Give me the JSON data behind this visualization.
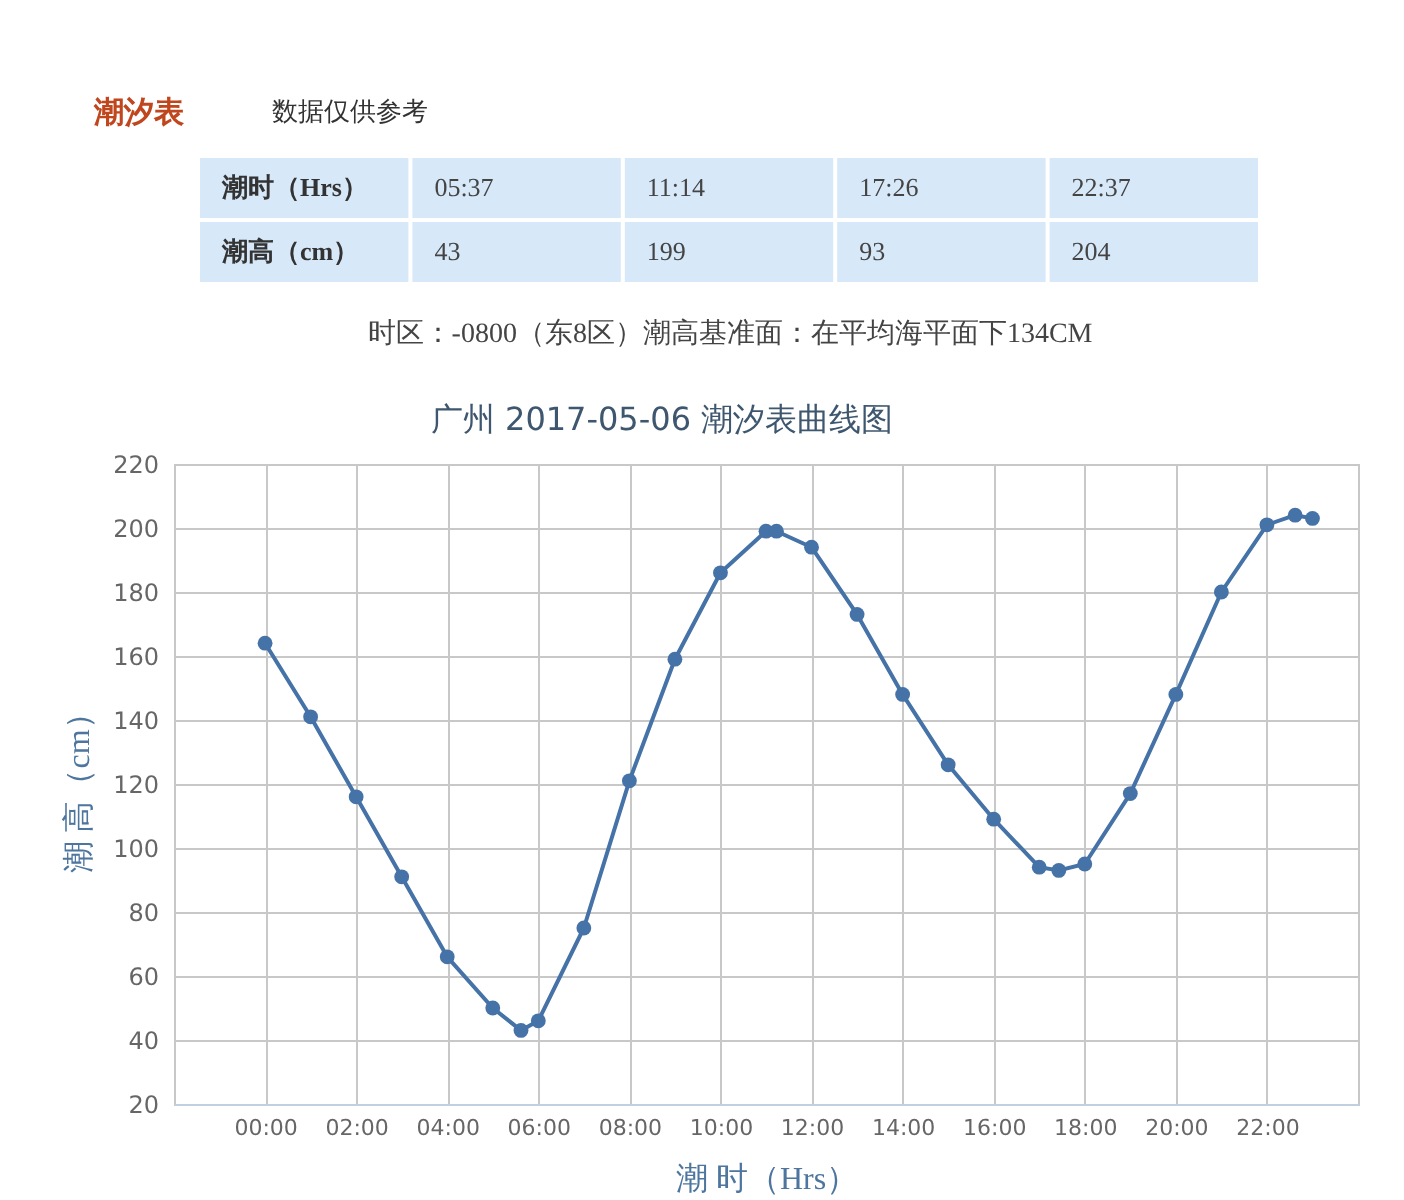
{
  "chart_data": [
    {
      "type": "other",
      "title": "潮汐表",
      "subtitle": "数据仅供参考",
      "annotations": [
        "潮时（Hrs）",
        "05:37",
        "11:14",
        "17:26",
        "22:37",
        "潮高（cm）",
        "43",
        "199",
        "93",
        "204",
        "时区：-0800（东8区）潮高基准面：在平均海平面下134CM"
      ]
    },
    {
      "type": "line",
      "title": "广州 2017-05-06 潮汐表曲线图",
      "xlabel": "潮 时（Hrs）",
      "ylabel": "潮 高（cm）",
      "x": [
        0,
        1,
        2,
        3,
        4,
        5,
        5.62,
        6,
        7,
        8,
        9,
        10,
        11,
        11.23,
        12,
        13,
        14,
        15,
        16,
        17,
        17.43,
        18,
        19,
        20,
        21,
        22,
        22.62,
        23
      ],
      "series": [
        {
          "color": "#4572a7",
          "values": [
            164,
            141,
            116,
            91,
            66,
            50,
            43,
            46,
            75,
            121,
            159,
            186,
            199,
            199,
            194,
            173,
            148,
            126,
            109,
            94,
            93,
            95,
            117,
            148,
            180,
            201,
            204,
            203
          ]
        }
      ],
      "xlim": [
        -2,
        24
      ],
      "xticks": [
        {
          "value": 0,
          "label": "00:00"
        },
        {
          "value": 2,
          "label": "02:00"
        },
        {
          "value": 4,
          "label": "04:00"
        },
        {
          "value": 6,
          "label": "06:00"
        },
        {
          "value": 8,
          "label": "08:00"
        },
        {
          "value": 10,
          "label": "10:00"
        },
        {
          "value": 12,
          "label": "12:00"
        },
        {
          "value": 14,
          "label": "14:00"
        },
        {
          "value": 16,
          "label": "16:00"
        },
        {
          "value": 18,
          "label": "18:00"
        },
        {
          "value": 20,
          "label": "20:00"
        },
        {
          "value": 22,
          "label": "22:00"
        }
      ],
      "ylim": [
        20,
        220
      ],
      "yticks": [
        20,
        40,
        60,
        80,
        100,
        120,
        140,
        160,
        180,
        200,
        220
      ],
      "grid": true,
      "marker": "circle",
      "line_style": "solid"
    }
  ]
}
